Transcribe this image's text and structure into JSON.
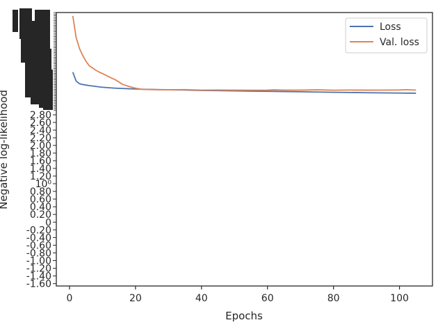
{
  "chart_data": {
    "type": "line",
    "xlabel": "Epochs",
    "ylabel": "Negative log-likelihood",
    "xlim": [
      -4,
      110
    ],
    "x_ticks": [
      "0",
      "20",
      "40",
      "60",
      "80",
      "100"
    ],
    "y_tick_labels": [
      "10⁰",
      "0.80",
      "0.60",
      "0.40",
      "0.20",
      "0",
      "-0.20",
      "-0.40",
      "-0.60",
      "-0.80",
      "-1.00",
      "-1.20",
      "-1.40",
      "-1.60"
    ],
    "y_tick_labels_upper": [
      "2.80",
      "2.60",
      "2.40",
      "2.20",
      "2.00",
      "1.80",
      "1.60",
      "1.40",
      "1.20"
    ],
    "y_scale": "log",
    "grid": false,
    "legend_placement": "top-right",
    "colors": {
      "loss": "#4c72b0",
      "val_loss": "#dd8452",
      "axis": "#262626"
    },
    "series": [
      {
        "name": "Loss",
        "x": [
          1,
          2,
          3,
          4,
          5,
          6,
          7,
          8,
          9,
          10,
          12,
          14,
          16,
          18,
          20,
          22,
          25,
          30,
          35,
          40,
          45,
          50,
          55,
          60,
          65,
          70,
          75,
          80,
          85,
          90,
          95,
          100,
          105
        ],
        "y": [
          1.6,
          1.42,
          1.37,
          1.355,
          1.345,
          1.335,
          1.328,
          1.32,
          1.312,
          1.306,
          1.297,
          1.29,
          1.285,
          1.28,
          1.276,
          1.272,
          1.268,
          1.262,
          1.258,
          1.252,
          1.248,
          1.244,
          1.24,
          1.237,
          1.233,
          1.229,
          1.225,
          1.221,
          1.218,
          1.214,
          1.211,
          1.208,
          1.206
        ]
      },
      {
        "name": "Val. loss",
        "x": [
          1,
          2,
          3,
          4,
          5,
          6,
          7,
          8,
          9,
          10,
          12,
          14,
          16,
          18,
          20,
          22,
          25,
          30,
          35,
          40,
          45,
          50,
          55,
          60,
          62,
          65,
          70,
          75,
          80,
          85,
          90,
          95,
          100,
          102,
          105
        ],
        "y": [
          3.4,
          2.55,
          2.2,
          2.0,
          1.85,
          1.74,
          1.69,
          1.64,
          1.6,
          1.57,
          1.5,
          1.44,
          1.36,
          1.32,
          1.29,
          1.27,
          1.265,
          1.262,
          1.265,
          1.257,
          1.258,
          1.256,
          1.255,
          1.256,
          1.262,
          1.257,
          1.256,
          1.262,
          1.255,
          1.258,
          1.256,
          1.257,
          1.259,
          1.264,
          1.257
        ]
      }
    ]
  }
}
